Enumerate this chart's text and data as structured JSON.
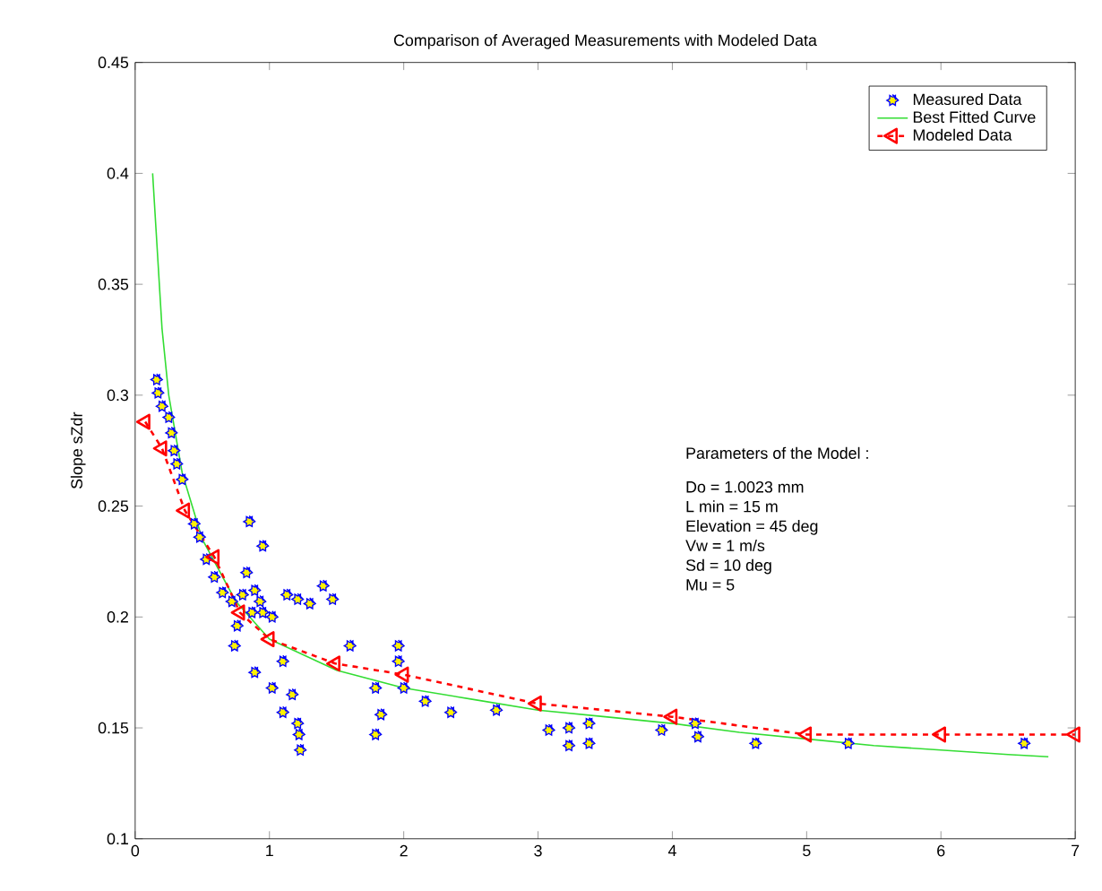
{
  "chart_data": {
    "type": "scatter",
    "title": "Comparison of Averaged Measurements with Modeled Data",
    "ylabel": "Slope sZdr",
    "xlim": [
      0,
      7
    ],
    "ylim": [
      0.1,
      0.45
    ],
    "xticks": [
      0,
      1,
      2,
      3,
      4,
      5,
      6,
      7
    ],
    "yticks": [
      0.1,
      0.15,
      0.2,
      0.25,
      0.3,
      0.35,
      0.4,
      0.45
    ],
    "legend": "top right",
    "grid": false,
    "annotations": [
      "Parameters of the Model :",
      "Do = 1.0023 mm",
      "L min = 15 m",
      "Elevation = 45 deg",
      "Vw = 1 m/s",
      "Sd = 10 deg",
      "Mu = 5"
    ],
    "series": [
      {
        "name": "Measured Data",
        "color": "#0000ff",
        "marker": "star",
        "x": [
          0.16,
          0.17,
          0.2,
          0.25,
          0.27,
          0.29,
          0.31,
          0.35,
          0.44,
          0.48,
          0.53,
          0.59,
          0.65,
          0.72,
          0.83,
          0.8,
          0.89,
          0.93,
          0.87,
          0.95,
          1.02,
          0.76,
          0.85,
          0.95,
          0.74,
          0.89,
          1.02,
          1.1,
          1.13,
          1.21,
          1.3,
          1.4,
          1.47,
          1.17,
          1.1,
          1.21,
          1.22,
          1.23,
          1.6,
          1.79,
          1.83,
          1.79,
          1.96,
          1.96,
          2.0,
          2.16,
          2.35,
          2.69,
          3.08,
          3.23,
          3.23,
          3.38,
          3.38,
          3.92,
          4.17,
          4.19,
          4.62,
          5.31,
          6.62
        ],
        "values": [
          0.307,
          0.301,
          0.295,
          0.29,
          0.283,
          0.275,
          0.269,
          0.262,
          0.242,
          0.236,
          0.226,
          0.218,
          0.211,
          0.207,
          0.22,
          0.21,
          0.212,
          0.207,
          0.202,
          0.202,
          0.2,
          0.196,
          0.243,
          0.232,
          0.187,
          0.175,
          0.168,
          0.18,
          0.21,
          0.208,
          0.206,
          0.214,
          0.208,
          0.165,
          0.157,
          0.152,
          0.147,
          0.14,
          0.187,
          0.168,
          0.156,
          0.147,
          0.187,
          0.18,
          0.168,
          0.162,
          0.157,
          0.158,
          0.149,
          0.15,
          0.142,
          0.152,
          0.143,
          0.149,
          0.152,
          0.146,
          0.143,
          0.143,
          0.143
        ]
      },
      {
        "name": "Best Fitted Curve",
        "type": "line",
        "color": "#33dd33",
        "marker": "none",
        "line_style": "solid",
        "x": [
          0.13,
          0.17,
          0.2,
          0.25,
          0.35,
          0.5,
          0.75,
          1,
          1.5,
          2,
          2.5,
          3,
          3.5,
          4,
          4.5,
          5,
          5.5,
          6,
          6.5,
          6.8
        ],
        "values": [
          0.4,
          0.36,
          0.33,
          0.3,
          0.265,
          0.235,
          0.207,
          0.19,
          0.176,
          0.168,
          0.163,
          0.158,
          0.155,
          0.152,
          0.148,
          0.145,
          0.142,
          0.14,
          0.138,
          0.137
        ]
      },
      {
        "name": "Modeled Data",
        "type": "line",
        "color": "#ff0000",
        "marker": "triangle",
        "line_style": "dashed",
        "x": [
          0.075,
          0.2,
          0.37,
          0.59,
          0.78,
          1.0,
          1.49,
          2.0,
          2.99,
          4.0,
          5.0,
          6.0,
          7.0
        ],
        "values": [
          0.288,
          0.276,
          0.248,
          0.227,
          0.202,
          0.19,
          0.179,
          0.174,
          0.161,
          0.155,
          0.147,
          0.147,
          0.147
        ]
      }
    ]
  }
}
